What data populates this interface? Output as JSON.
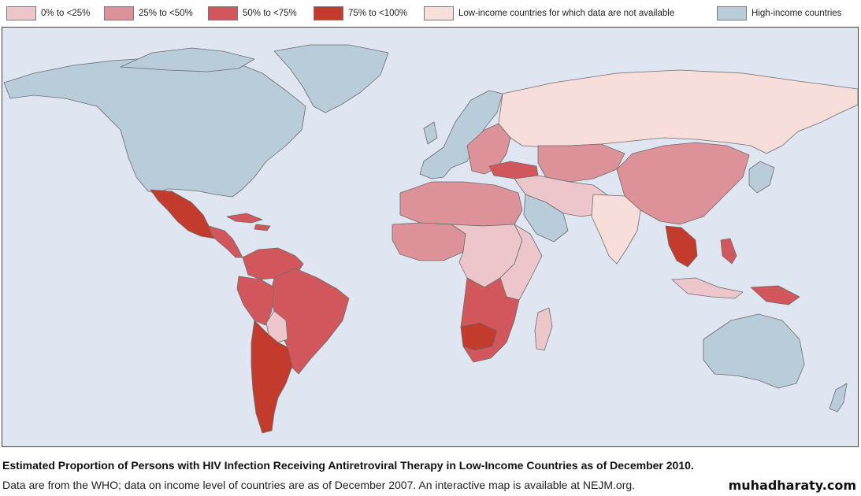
{
  "legend": {
    "items": [
      {
        "label": "0% to <25%",
        "color": "#ecc6cb"
      },
      {
        "label": "25% to <50%",
        "color": "#dd9199"
      },
      {
        "label": "50% to <75%",
        "color": "#d2575c"
      },
      {
        "label": "75% to <100%",
        "color": "#c23b2c"
      },
      {
        "label": "Low-income countries for which data are not available",
        "color": "#f8dedb"
      },
      {
        "label": "High-income countries",
        "color": "#b8ccda"
      }
    ]
  },
  "map": {
    "ocean_color": "#dfe5f1",
    "regions": [
      {
        "name": "North America",
        "category": "High-income countries"
      },
      {
        "name": "Greenland",
        "category": "High-income countries"
      },
      {
        "name": "Mexico",
        "category": "75% to <100%"
      },
      {
        "name": "Central America",
        "category": "50% to <75%"
      },
      {
        "name": "Caribbean",
        "category": "50% to <75%"
      },
      {
        "name": "Northern South America",
        "category": "50% to <75%"
      },
      {
        "name": "Brazil",
        "category": "50% to <75%"
      },
      {
        "name": "Peru",
        "category": "50% to <75%"
      },
      {
        "name": "Bolivia",
        "category": "0% to <25%"
      },
      {
        "name": "Argentina and Chile",
        "category": "75% to <100%"
      },
      {
        "name": "Western Europe",
        "category": "High-income countries"
      },
      {
        "name": "Eastern Europe",
        "category": "25% to <50%"
      },
      {
        "name": "Turkey",
        "category": "50% to <75%"
      },
      {
        "name": "Russia",
        "category": "Low-income countries for which data are not available"
      },
      {
        "name": "Central Asia",
        "category": "25% to <50%"
      },
      {
        "name": "China",
        "category": "25% to <50%"
      },
      {
        "name": "India",
        "category": "Low-income countries for which data are not available"
      },
      {
        "name": "Middle East",
        "category": "0% to <25%"
      },
      {
        "name": "Saudi Arabia",
        "category": "High-income countries"
      },
      {
        "name": "North Africa",
        "category": "25% to <50%"
      },
      {
        "name": "West Africa",
        "category": "25% to <50%"
      },
      {
        "name": "Central Africa",
        "category": "0% to <25%"
      },
      {
        "name": "East Africa",
        "category": "0% to <25%"
      },
      {
        "name": "Southern Africa",
        "category": "50% to <75%"
      },
      {
        "name": "Namibia and Botswana",
        "category": "75% to <100%"
      },
      {
        "name": "Madagascar",
        "category": "0% to <25%"
      },
      {
        "name": "Southeast Asia",
        "category": "75% to <100%"
      },
      {
        "name": "Philippines",
        "category": "50% to <75%"
      },
      {
        "name": "Indonesia",
        "category": "0% to <25%"
      },
      {
        "name": "Papua New Guinea",
        "category": "50% to <75%"
      },
      {
        "name": "Japan and Korea",
        "category": "High-income countries"
      },
      {
        "name": "Australia",
        "category": "High-income countries"
      },
      {
        "name": "New Zealand",
        "category": "High-income countries"
      }
    ]
  },
  "caption": {
    "title": "Estimated Proportion of Persons with HIV Infection Receiving Antiretroviral Therapy in Low-Income Countries as of December 2010.",
    "note": "Data are from the WHO; data on income level of countries are as of December 2007. An interactive map is available at NEJM.org."
  },
  "watermark": "muhadharaty.com"
}
